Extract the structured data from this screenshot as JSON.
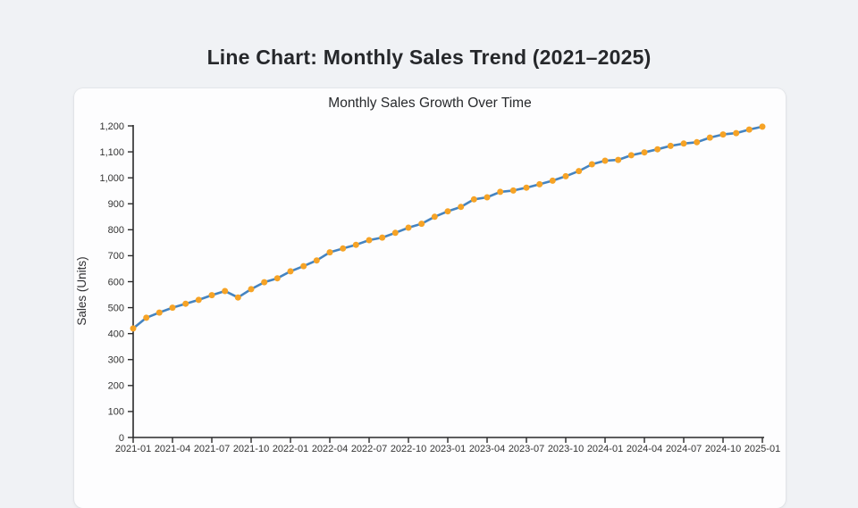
{
  "page": {
    "title": "Line Chart: Monthly Sales Trend (2021–2025)",
    "background_color": "#f0f2f5",
    "card_color": "#fdfdfe"
  },
  "chart_data": {
    "type": "line",
    "title": "Monthly Sales Growth Over Time",
    "xlabel": "",
    "ylabel": "Sales (Units)",
    "ylim": [
      0,
      1200
    ],
    "ytick_step": 100,
    "ytick_labels": [
      "0",
      "100",
      "200",
      "300",
      "400",
      "500",
      "600",
      "700",
      "800",
      "900",
      "1,000",
      "1,100",
      "1,200"
    ],
    "xtick_every": 3,
    "grid": false,
    "legend_position": "none",
    "line_color": "#4584c1",
    "marker_color": "#f6a326",
    "axis_color": "#2a2a2a",
    "tick_label_color": "#333333",
    "x": [
      "2021-01",
      "2021-02",
      "2021-03",
      "2021-04",
      "2021-05",
      "2021-06",
      "2021-07",
      "2021-08",
      "2021-09",
      "2021-10",
      "2021-11",
      "2021-12",
      "2022-01",
      "2022-02",
      "2022-03",
      "2022-04",
      "2022-05",
      "2022-06",
      "2022-07",
      "2022-08",
      "2022-09",
      "2022-10",
      "2022-11",
      "2022-12",
      "2023-01",
      "2023-02",
      "2023-03",
      "2023-04",
      "2023-05",
      "2023-06",
      "2023-07",
      "2023-08",
      "2023-09",
      "2023-10",
      "2023-11",
      "2023-12",
      "2024-01",
      "2024-02",
      "2024-03",
      "2024-04",
      "2024-05",
      "2024-06",
      "2024-07",
      "2024-08",
      "2024-09",
      "2024-10",
      "2024-11",
      "2024-12",
      "2025-01"
    ],
    "values": [
      420,
      461,
      481,
      500,
      515,
      530,
      548,
      564,
      539,
      571,
      598,
      613,
      640,
      660,
      682,
      713,
      728,
      742,
      760,
      770,
      788,
      808,
      823,
      850,
      871,
      888,
      917,
      925,
      946,
      951,
      962,
      975,
      989,
      1006,
      1026,
      1052,
      1066,
      1069,
      1087,
      1098,
      1110,
      1123,
      1132,
      1137,
      1155,
      1167,
      1172,
      1186,
      1197
    ]
  }
}
